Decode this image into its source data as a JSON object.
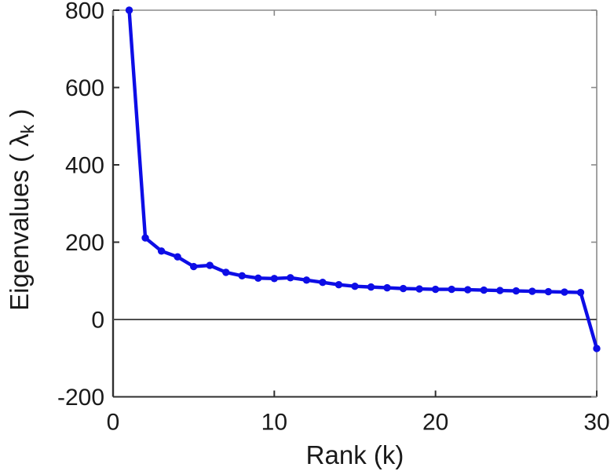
{
  "chart_data": {
    "type": "line",
    "title": "",
    "xlabel": "Rank (k)",
    "ylabel": "Eigenvalues ( λ_k )",
    "ylabel_parts": {
      "prefix": "Eigenvalues ( ",
      "symbol": "λ",
      "subscript": "k",
      "suffix": " )"
    },
    "x": [
      1,
      2,
      3,
      4,
      5,
      6,
      7,
      8,
      9,
      10,
      11,
      12,
      13,
      14,
      15,
      16,
      17,
      18,
      19,
      20,
      21,
      22,
      23,
      24,
      25,
      26,
      27,
      28,
      29,
      30
    ],
    "series": [
      {
        "name": "eigenvalue-spectrum",
        "color": "#0d0de6",
        "marker": "circle",
        "values": [
          800,
          211,
          177,
          162,
          137,
          140,
          122,
          113,
          107,
          106,
          108,
          102,
          96,
          90,
          86,
          84,
          82,
          80,
          79,
          78,
          78,
          77,
          76,
          75,
          74,
          73,
          72,
          71,
          70,
          -75
        ]
      }
    ],
    "xlim": [
      0,
      30
    ],
    "ylim": [
      -200,
      800
    ],
    "xticks": [
      0,
      10,
      20,
      30
    ],
    "yticks": [
      -200,
      0,
      200,
      400,
      600,
      800
    ],
    "xtick_labels": [
      "0",
      "10",
      "20",
      "30"
    ],
    "ytick_labels": [
      "-200",
      "0",
      "200",
      "400",
      "600",
      "800"
    ],
    "zero_line": true,
    "grid": false,
    "legend": null,
    "colors": {
      "line": "#0d0de6",
      "axis": "#2f2f2f",
      "box": "#8a8a8a",
      "zero_line": "#4f4f4f",
      "tick_label": "#1a1a1a",
      "background": "#ffffff"
    }
  }
}
